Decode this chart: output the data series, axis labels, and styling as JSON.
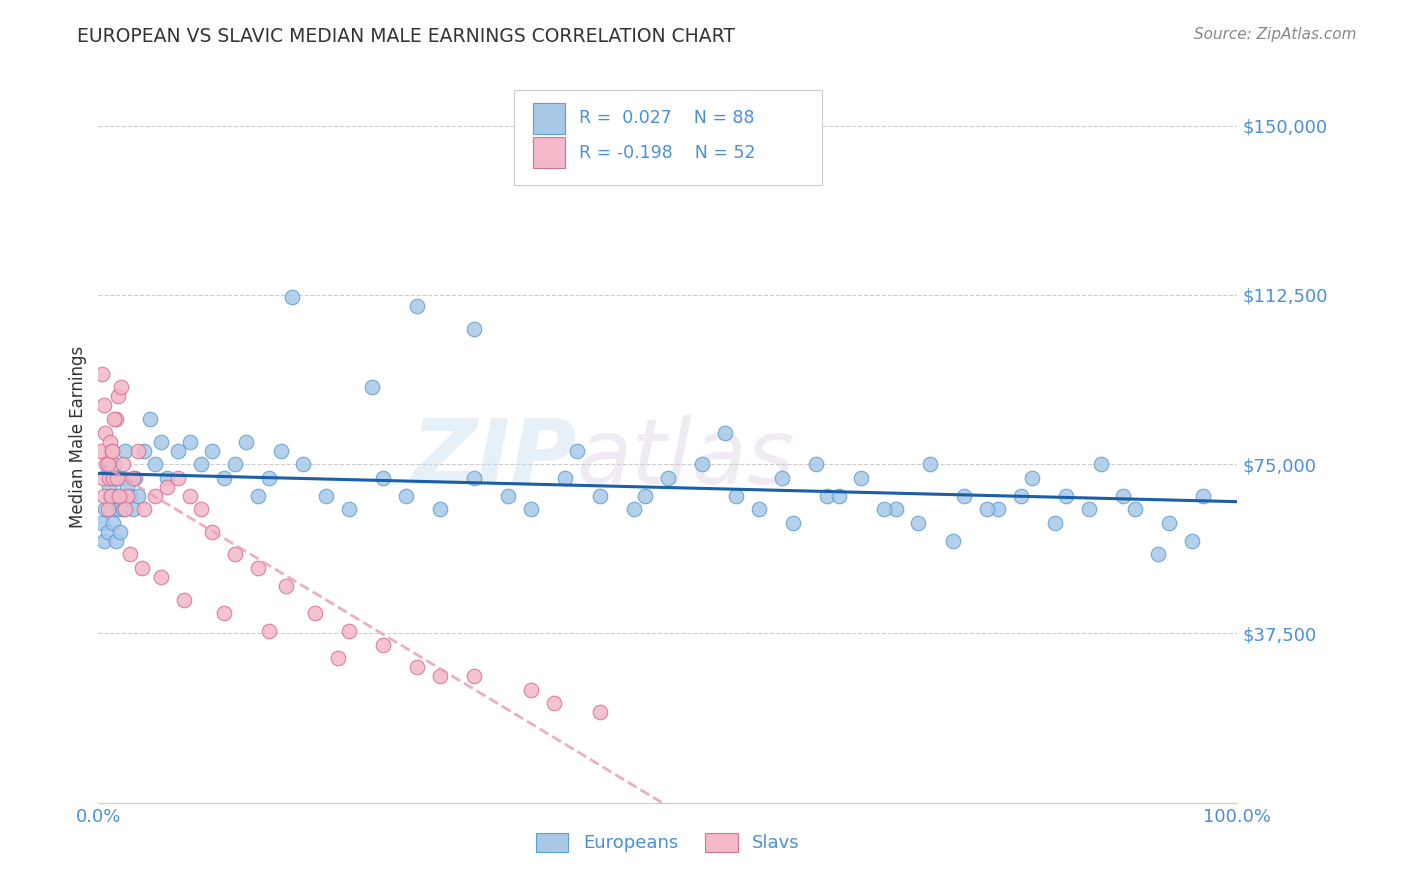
{
  "title": "EUROPEAN VS SLAVIC MEDIAN MALE EARNINGS CORRELATION CHART",
  "source": "Source: ZipAtlas.com",
  "ylabel": "Median Male Earnings",
  "yticks": [
    0,
    37500,
    75000,
    112500,
    150000
  ],
  "ytick_labels": [
    "",
    "$37,500",
    "$75,000",
    "$112,500",
    "$150,000"
  ],
  "xlim": [
    0.0,
    100.0
  ],
  "ylim": [
    0,
    162000
  ],
  "title_color": "#333333",
  "source_color": "#888888",
  "axis_label_color": "#333333",
  "tick_label_color": "#4a90d9",
  "background_color": "#ffffff",
  "grid_color": "#cccccc",
  "european_fill": "#a8c8e8",
  "european_edge": "#5a9fd4",
  "slavic_fill": "#f4b8c8",
  "slavic_edge": "#d47090",
  "eu_line_color": "#1a5fa8",
  "sl_line_color": "#e8a0b8",
  "R_european": 0.027,
  "N_european": 88,
  "R_slavic": -0.198,
  "N_slavic": 52,
  "legend_labels": [
    "Europeans",
    "Slavs"
  ],
  "watermark_zip": "ZIP",
  "watermark_atlas": "atlas",
  "europeans_x": [
    0.3,
    0.5,
    0.6,
    0.8,
    0.9,
    1.0,
    1.1,
    1.2,
    1.3,
    1.4,
    1.5,
    1.6,
    1.7,
    1.8,
    1.9,
    2.0,
    2.1,
    2.2,
    2.3,
    2.5,
    2.8,
    3.0,
    3.2,
    3.5,
    4.0,
    4.5,
    5.0,
    5.5,
    6.0,
    7.0,
    8.0,
    9.0,
    10.0,
    11.0,
    12.0,
    13.0,
    14.0,
    15.0,
    16.0,
    18.0,
    20.0,
    22.0,
    25.0,
    27.0,
    30.0,
    33.0,
    36.0,
    38.0,
    41.0,
    44.0,
    47.0,
    50.0,
    53.0,
    56.0,
    58.0,
    61.0,
    64.0,
    67.0,
    70.0,
    73.0,
    76.0,
    79.0,
    82.0,
    85.0,
    88.0,
    91.0,
    94.0,
    97.0,
    28.0,
    33.0,
    42.0,
    55.0,
    60.0,
    65.0,
    69.0,
    72.0,
    75.0,
    78.0,
    81.0,
    84.0,
    87.0,
    90.0,
    93.0,
    96.0,
    17.0,
    24.0,
    48.0,
    63.0
  ],
  "europeans_y": [
    62000,
    58000,
    65000,
    60000,
    70000,
    68000,
    72000,
    65000,
    62000,
    75000,
    58000,
    68000,
    72000,
    65000,
    60000,
    68000,
    72000,
    65000,
    78000,
    70000,
    68000,
    65000,
    72000,
    68000,
    78000,
    85000,
    75000,
    80000,
    72000,
    78000,
    80000,
    75000,
    78000,
    72000,
    75000,
    80000,
    68000,
    72000,
    78000,
    75000,
    68000,
    65000,
    72000,
    68000,
    65000,
    72000,
    68000,
    65000,
    72000,
    68000,
    65000,
    72000,
    75000,
    68000,
    65000,
    62000,
    68000,
    72000,
    65000,
    75000,
    68000,
    65000,
    72000,
    68000,
    75000,
    65000,
    62000,
    68000,
    110000,
    105000,
    78000,
    82000,
    72000,
    68000,
    65000,
    62000,
    58000,
    65000,
    68000,
    62000,
    65000,
    68000,
    55000,
    58000,
    112000,
    92000,
    68000,
    75000
  ],
  "slavs_x": [
    0.2,
    0.4,
    0.5,
    0.6,
    0.7,
    0.8,
    0.9,
    1.0,
    1.1,
    1.2,
    1.3,
    1.5,
    1.7,
    2.0,
    2.2,
    2.5,
    3.0,
    3.5,
    4.0,
    5.0,
    6.0,
    7.0,
    8.0,
    9.0,
    10.0,
    12.0,
    14.0,
    16.5,
    19.0,
    22.0,
    25.0,
    28.0,
    33.0,
    38.0,
    44.0,
    1.4,
    1.6,
    1.8,
    2.3,
    2.8,
    3.8,
    5.5,
    7.5,
    11.0,
    15.0,
    21.0,
    30.0,
    40.0,
    0.3,
    0.5,
    0.8,
    1.2
  ],
  "slavs_y": [
    78000,
    72000,
    68000,
    82000,
    75000,
    65000,
    72000,
    80000,
    68000,
    78000,
    72000,
    85000,
    90000,
    92000,
    75000,
    68000,
    72000,
    78000,
    65000,
    68000,
    70000,
    72000,
    68000,
    65000,
    60000,
    55000,
    52000,
    48000,
    42000,
    38000,
    35000,
    30000,
    28000,
    25000,
    20000,
    85000,
    72000,
    68000,
    65000,
    55000,
    52000,
    50000,
    45000,
    42000,
    38000,
    32000,
    28000,
    22000,
    95000,
    88000,
    75000,
    78000
  ]
}
